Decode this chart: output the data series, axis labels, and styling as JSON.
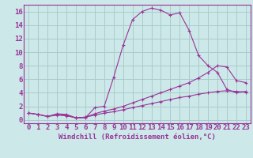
{
  "xlabel": "Windchill (Refroidissement éolien,°C)",
  "bg_color": "#cce8e8",
  "grid_color": "#aacccc",
  "line_color": "#993399",
  "xlim": [
    -0.5,
    23.5
  ],
  "ylim": [
    -0.5,
    17
  ],
  "xticks": [
    0,
    1,
    2,
    3,
    4,
    5,
    6,
    7,
    8,
    9,
    10,
    11,
    12,
    13,
    14,
    15,
    16,
    17,
    18,
    19,
    20,
    21,
    22,
    23
  ],
  "yticks": [
    0,
    2,
    4,
    6,
    8,
    10,
    12,
    14,
    16
  ],
  "curve1_x": [
    0,
    1,
    2,
    3,
    4,
    5,
    6,
    7,
    8,
    9,
    10,
    11,
    12,
    13,
    14,
    15,
    16,
    17,
    18,
    19,
    20,
    21,
    22,
    23
  ],
  "curve1_y": [
    1.0,
    0.8,
    0.5,
    0.9,
    0.8,
    0.3,
    0.3,
    1.8,
    2.0,
    6.3,
    11.0,
    14.8,
    16.0,
    16.5,
    16.2,
    15.5,
    15.8,
    13.2,
    9.5,
    8.0,
    7.0,
    4.5,
    4.0,
    4.2
  ],
  "curve2_x": [
    0,
    1,
    2,
    3,
    4,
    5,
    6,
    7,
    8,
    9,
    10,
    11,
    12,
    13,
    14,
    15,
    16,
    17,
    18,
    19,
    20,
    21,
    22,
    23
  ],
  "curve2_y": [
    1.0,
    0.8,
    0.5,
    0.8,
    0.7,
    0.3,
    0.4,
    0.9,
    1.3,
    1.6,
    2.0,
    2.5,
    3.0,
    3.5,
    4.0,
    4.5,
    5.0,
    5.5,
    6.2,
    7.0,
    8.0,
    7.8,
    5.8,
    5.5
  ],
  "curve3_x": [
    0,
    1,
    2,
    3,
    4,
    5,
    6,
    7,
    8,
    9,
    10,
    11,
    12,
    13,
    14,
    15,
    16,
    17,
    18,
    19,
    20,
    21,
    22,
    23
  ],
  "curve3_y": [
    1.0,
    0.8,
    0.5,
    0.7,
    0.6,
    0.3,
    0.4,
    0.7,
    1.0,
    1.2,
    1.5,
    1.8,
    2.1,
    2.4,
    2.7,
    3.0,
    3.3,
    3.5,
    3.8,
    4.0,
    4.2,
    4.3,
    4.2,
    4.1
  ],
  "font_size_xlabel": 6.5,
  "font_size_ticks": 6.5
}
